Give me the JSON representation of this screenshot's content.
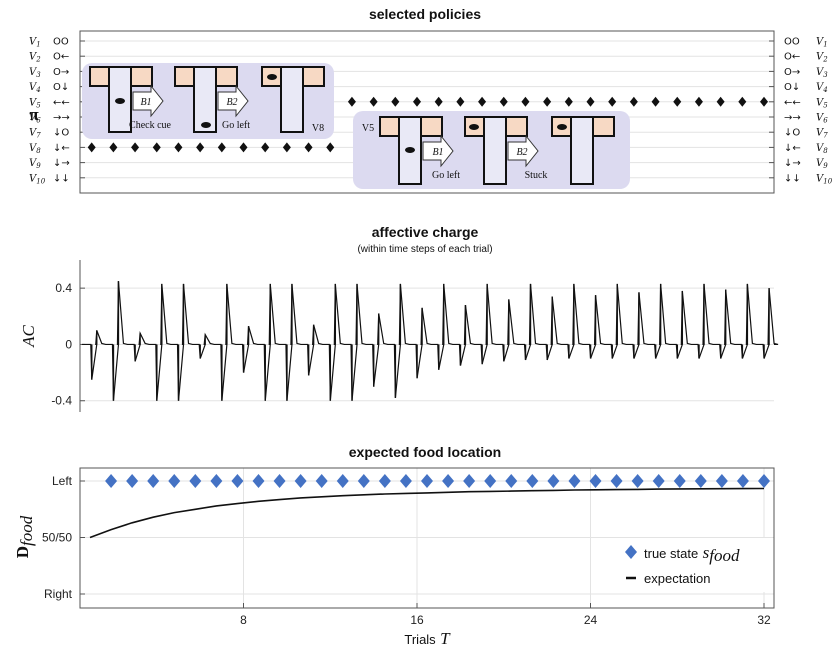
{
  "chart_data": [
    {
      "type": "scatter",
      "title": "selected policies",
      "ylabel": "π",
      "policies": [
        {
          "label": "V1",
          "sub": "1",
          "sym": "OO"
        },
        {
          "label": "V2",
          "sub": "2",
          "sym": "O←"
        },
        {
          "label": "V3",
          "sub": "3",
          "sym": "O→"
        },
        {
          "label": "V4",
          "sub": "4",
          "sym": "O↓"
        },
        {
          "label": "V5",
          "sub": "5",
          "sym": "←←"
        },
        {
          "label": "V6",
          "sub": "6",
          "sym": "→→"
        },
        {
          "label": "V7",
          "sub": "7",
          "sym": "↓O"
        },
        {
          "label": "V8",
          "sub": "8",
          "sym": "↓←"
        },
        {
          "label": "V9",
          "sub": "9",
          "sym": "↓→"
        },
        {
          "label": "V10",
          "sub": "10",
          "sym": "↓↓"
        }
      ],
      "xlim": [
        0,
        32
      ],
      "selected": [
        {
          "trials": [
            1,
            12
          ],
          "policy": 8
        },
        {
          "trials": [
            13,
            32
          ],
          "policy": 5
        }
      ],
      "insets": [
        {
          "labels": [
            "B1",
            "B2"
          ],
          "captions": [
            "Check cue",
            "Go left"
          ],
          "tag": "V8"
        },
        {
          "labels": [
            "B1",
            "B2"
          ],
          "captions": [
            "Go left",
            "Stuck"
          ],
          "tag": "V5"
        }
      ],
      "colors": {
        "marker": "#111111",
        "inset_bg": "#dcdaf0",
        "wall": "#f7d9c4",
        "arm": "#e9e9f6"
      }
    },
    {
      "type": "line",
      "title": "affective charge",
      "subtitle": "(within time steps of each trial)",
      "ylabel": "AC",
      "ylim": [
        -0.48,
        0.6
      ],
      "yticks": [
        0.4,
        0,
        -0.4
      ],
      "ytick_labels": [
        "0.4",
        "0",
        "-0.4"
      ],
      "xlim": [
        0,
        32
      ],
      "trials": [
        {
          "t": 1,
          "pos": 0.1,
          "neg": -0.25
        },
        {
          "t": 2,
          "pos": 0.45,
          "neg": -0.4
        },
        {
          "t": 3,
          "pos": 0.08,
          "neg": -0.12
        },
        {
          "t": 4,
          "pos": 0.43,
          "neg": -0.4
        },
        {
          "t": 5,
          "pos": 0.43,
          "neg": -0.4
        },
        {
          "t": 6,
          "pos": 0.07,
          "neg": -0.1
        },
        {
          "t": 7,
          "pos": 0.43,
          "neg": -0.4
        },
        {
          "t": 8,
          "pos": 0.13,
          "neg": -0.2
        },
        {
          "t": 9,
          "pos": 0.43,
          "neg": -0.4
        },
        {
          "t": 10,
          "pos": 0.43,
          "neg": -0.4
        },
        {
          "t": 11,
          "pos": 0.14,
          "neg": -0.22
        },
        {
          "t": 12,
          "pos": 0.43,
          "neg": -0.4
        },
        {
          "t": 13,
          "pos": 0.43,
          "neg": -0.4
        },
        {
          "t": 14,
          "pos": 0.22,
          "neg": -0.3
        },
        {
          "t": 15,
          "pos": 0.43,
          "neg": -0.38
        },
        {
          "t": 16,
          "pos": 0.26,
          "neg": -0.24
        },
        {
          "t": 17,
          "pos": 0.43,
          "neg": -0.18
        },
        {
          "t": 18,
          "pos": 0.28,
          "neg": -0.15
        },
        {
          "t": 19,
          "pos": 0.43,
          "neg": -0.14
        },
        {
          "t": 20,
          "pos": 0.32,
          "neg": -0.12
        },
        {
          "t": 21,
          "pos": 0.43,
          "neg": -0.11
        },
        {
          "t": 22,
          "pos": 0.34,
          "neg": -0.11
        },
        {
          "t": 23,
          "pos": 0.43,
          "neg": -0.1
        },
        {
          "t": 24,
          "pos": 0.35,
          "neg": -0.1
        },
        {
          "t": 25,
          "pos": 0.43,
          "neg": -0.1
        },
        {
          "t": 26,
          "pos": 0.37,
          "neg": -0.1
        },
        {
          "t": 27,
          "pos": 0.43,
          "neg": -0.1
        },
        {
          "t": 28,
          "pos": 0.38,
          "neg": -0.1
        },
        {
          "t": 29,
          "pos": 0.43,
          "neg": -0.1
        },
        {
          "t": 30,
          "pos": 0.39,
          "neg": -0.1
        },
        {
          "t": 31,
          "pos": 0.43,
          "neg": -0.1
        },
        {
          "t": 32,
          "pos": 0.4,
          "neg": -0.1
        }
      ],
      "colors": {
        "line": "#111111"
      }
    },
    {
      "type": "line",
      "title": "expected food location",
      "ylabel": "D",
      "ylabel_sub": "food",
      "xlabel": "Trials",
      "xlabel_var": "T",
      "xlim": [
        0,
        32
      ],
      "xticks": [
        8,
        16,
        24,
        32
      ],
      "xtick_labels": [
        "8",
        "16",
        "24",
        "32"
      ],
      "ylim": [
        0,
        1.05
      ],
      "yticks": [
        1,
        0.5,
        0
      ],
      "ytick_labels": [
        "Left",
        "50/50",
        "Right"
      ],
      "series": [
        {
          "name": "true state",
          "name_var": "s",
          "name_sub": "food",
          "marker": "diamond",
          "color": "#4472c4",
          "x": [
            1,
            2,
            3,
            4,
            5,
            6,
            7,
            8,
            9,
            10,
            11,
            12,
            13,
            14,
            15,
            16,
            17,
            18,
            19,
            20,
            21,
            22,
            23,
            24,
            25,
            26,
            27,
            28,
            29,
            30,
            31,
            32
          ],
          "y": [
            1,
            1,
            1,
            1,
            1,
            1,
            1,
            1,
            1,
            1,
            1,
            1,
            1,
            1,
            1,
            1,
            1,
            1,
            1,
            1,
            1,
            1,
            1,
            1,
            1,
            1,
            1,
            1,
            1,
            1,
            1,
            1
          ]
        },
        {
          "name": "expectation",
          "color": "#111111",
          "x": [
            0,
            1,
            2,
            3,
            4,
            5,
            6,
            7,
            8,
            9,
            10,
            11,
            12,
            13,
            14,
            15,
            16,
            17,
            18,
            19,
            20,
            21,
            22,
            23,
            24,
            25,
            26,
            27,
            28,
            29,
            30,
            31,
            32
          ],
          "y": [
            0.5,
            0.57,
            0.63,
            0.68,
            0.72,
            0.75,
            0.78,
            0.8,
            0.82,
            0.835,
            0.85,
            0.86,
            0.87,
            0.878,
            0.885,
            0.89,
            0.895,
            0.9,
            0.905,
            0.908,
            0.911,
            0.914,
            0.917,
            0.92,
            0.922,
            0.924,
            0.926,
            0.928,
            0.93,
            0.931,
            0.932,
            0.933,
            0.934
          ]
        }
      ],
      "legend": "bottom-right"
    }
  ]
}
